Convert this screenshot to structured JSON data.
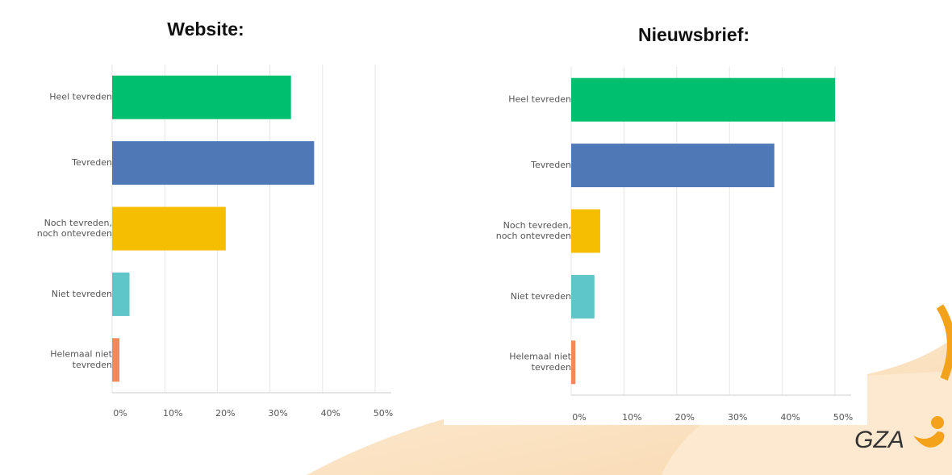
{
  "chart_data": [
    {
      "type": "barh",
      "title": "Website:",
      "categories": [
        "Heel tevreden",
        "Tevreden",
        "Noch tevreden,\nnoch ontevreden",
        "Niet tevreden",
        "Helemaal niet\ntevreden"
      ],
      "values": [
        34,
        38.4,
        21.6,
        3.3,
        1.4
      ],
      "colors": [
        "#00bf6f",
        "#4f78b7",
        "#f5be00",
        "#5ec5c8",
        "#f08a5b"
      ],
      "xlim": [
        0,
        50
      ],
      "xticks": [
        {
          "value": 0,
          "label": "0%"
        },
        {
          "value": 10,
          "label": "10%"
        },
        {
          "value": 20,
          "label": "20%"
        },
        {
          "value": 30,
          "label": "30%"
        },
        {
          "value": 40,
          "label": "40%"
        },
        {
          "value": 50,
          "label": "50%"
        }
      ],
      "grid": true
    },
    {
      "type": "barh",
      "title": "Nieuwsbrief:",
      "categories": [
        "Heel tevreden",
        "Tevreden",
        "Noch tevreden,\nnoch ontevreden",
        "Niet tevreden",
        "Helemaal niet\ntevreden"
      ],
      "values": [
        50,
        38.5,
        5.5,
        4.4,
        0.8
      ],
      "colors": [
        "#00bf6f",
        "#4f78b7",
        "#f5be00",
        "#5ec5c8",
        "#f08a5b"
      ],
      "xlim": [
        0,
        50
      ],
      "xticks": [
        {
          "value": 0,
          "label": "0%"
        },
        {
          "value": 10,
          "label": "10%"
        },
        {
          "value": 20,
          "label": "20%"
        },
        {
          "value": 30,
          "label": "30%"
        },
        {
          "value": 40,
          "label": "40%"
        },
        {
          "value": 50,
          "label": "50%"
        }
      ],
      "grid": true
    }
  ],
  "logo": {
    "text": "GZA"
  }
}
